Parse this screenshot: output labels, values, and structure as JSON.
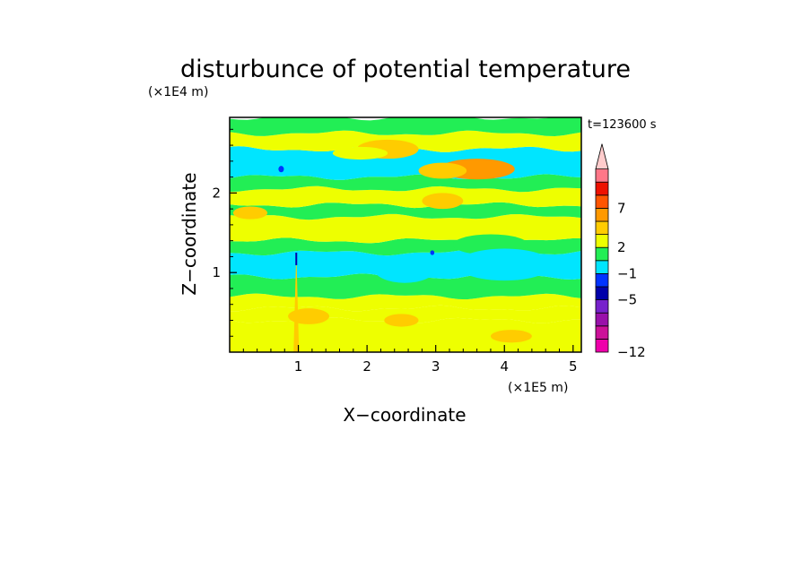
{
  "chart_data": {
    "type": "heatmap",
    "title": "disturbunce of potential temperature",
    "xlabel": "X−coordinate",
    "ylabel": "Z−coordinate",
    "x_unit": "(×1E5 m)",
    "y_unit": "(×1E4 m)",
    "time_label": "t=123600 s",
    "xlim": [
      0,
      5.12
    ],
    "ylim": [
      0,
      2.95
    ],
    "x_ticks": [
      {
        "value": 1,
        "label": "1"
      },
      {
        "value": 2,
        "label": "2"
      },
      {
        "value": 3,
        "label": "3"
      },
      {
        "value": 4,
        "label": "4"
      },
      {
        "value": 5,
        "label": "5"
      }
    ],
    "y_ticks": [
      {
        "value": 1,
        "label": "1"
      },
      {
        "value": 2,
        "label": "2"
      }
    ],
    "colorbar": {
      "levels": [
        -12,
        -10,
        -8,
        -6,
        -5,
        -3,
        -1,
        0,
        2,
        3,
        5,
        7,
        9,
        11
      ],
      "colors": [
        "#ee00aa",
        "#cc1199",
        "#9911aa",
        "#7722cc",
        "#0000aa",
        "#0033ff",
        "#00e5ff",
        "#22ee55",
        "#eeff00",
        "#ffcc00",
        "#ff9900",
        "#ff5500",
        "#ee1100",
        "#ff7788",
        "#ffcccc"
      ],
      "labels": [
        {
          "value": -12,
          "text": "−12"
        },
        {
          "value": -5,
          "text": "−5"
        },
        {
          "value": -1,
          "text": "−1"
        },
        {
          "value": 2,
          "text": "2"
        },
        {
          "value": 7,
          "text": "7"
        }
      ]
    },
    "bands": [
      {
        "z0": 0.0,
        "z1": 0.4,
        "value": 1.0
      },
      {
        "z0": 0.4,
        "z1": 0.55,
        "value": 0.6
      },
      {
        "z0": 0.55,
        "z1": 0.7,
        "value": 1.2
      },
      {
        "z0": 0.7,
        "z1": 0.95,
        "value": -0.4
      },
      {
        "z0": 0.95,
        "z1": 1.25,
        "value": -1.5
      },
      {
        "z0": 1.25,
        "z1": 1.4,
        "value": -0.4
      },
      {
        "z0": 1.4,
        "z1": 1.7,
        "value": 1.3
      },
      {
        "z0": 1.7,
        "z1": 1.85,
        "value": -0.4
      },
      {
        "z0": 1.85,
        "z1": 2.05,
        "value": 0.9
      },
      {
        "z0": 2.05,
        "z1": 2.2,
        "value": -0.5
      },
      {
        "z0": 2.2,
        "z1": 2.55,
        "value": -1.5
      },
      {
        "z0": 2.55,
        "z1": 2.75,
        "value": 0.7
      },
      {
        "z0": 2.75,
        "z1": 2.95,
        "value": -0.3
      }
    ],
    "blobs": [
      {
        "x": 3.6,
        "z": 2.3,
        "rx": 0.55,
        "rz": 0.13,
        "value": 3.5
      },
      {
        "x": 3.1,
        "z": 2.28,
        "rx": 0.35,
        "rz": 0.1,
        "value": 2.8
      },
      {
        "x": 2.3,
        "z": 2.55,
        "rx": 0.45,
        "rz": 0.12,
        "value": 2.2
      },
      {
        "x": 1.9,
        "z": 2.5,
        "rx": 0.4,
        "rz": 0.08,
        "value": 1.0
      },
      {
        "x": 3.8,
        "z": 1.35,
        "rx": 0.55,
        "rz": 0.13,
        "value": -0.5
      },
      {
        "x": 4.0,
        "z": 1.1,
        "rx": 0.7,
        "rz": 0.2,
        "value": -1.4
      },
      {
        "x": 2.55,
        "z": 1.05,
        "rx": 0.45,
        "rz": 0.18,
        "value": -1.4
      },
      {
        "x": 3.1,
        "z": 1.9,
        "rx": 0.3,
        "rz": 0.1,
        "value": 2.2
      },
      {
        "x": 1.15,
        "z": 0.45,
        "rx": 0.3,
        "rz": 0.1,
        "value": 2.3
      },
      {
        "x": 2.5,
        "z": 0.4,
        "rx": 0.25,
        "rz": 0.08,
        "value": 2.2
      },
      {
        "x": 4.1,
        "z": 0.2,
        "rx": 0.3,
        "rz": 0.08,
        "value": 2.3
      },
      {
        "x": 0.75,
        "z": 2.3,
        "rx": 0.04,
        "rz": 0.04,
        "value": -3.5
      },
      {
        "x": 2.95,
        "z": 1.25,
        "rx": 0.03,
        "rz": 0.03,
        "value": -3.5
      },
      {
        "x": 0.3,
        "z": 1.75,
        "rx": 0.25,
        "rz": 0.08,
        "value": 2.4
      }
    ],
    "plume": {
      "x": 0.97,
      "z_top": 1.25,
      "half_width": 0.04,
      "value": 2.5
    }
  }
}
